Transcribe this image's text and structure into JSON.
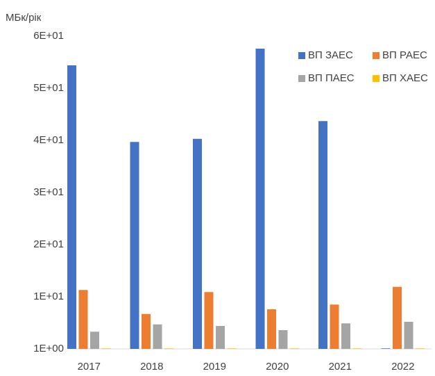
{
  "chart_data": {
    "type": "bar",
    "y_label": "МБк/рік",
    "categories": [
      "2017",
      "2018",
      "2019",
      "2020",
      "2021",
      "2022"
    ],
    "series": [
      {
        "name": "ВП ЗАЕС",
        "color": "#4472c4",
        "values": [
          55.4,
          40.7,
          41.3,
          58.6,
          44.7,
          1.1
        ]
      },
      {
        "name": "ВП РАЕС",
        "color": "#ed7d31",
        "values": [
          12.3,
          7.7,
          11.9,
          8.6,
          9.5,
          12.9
        ]
      },
      {
        "name": "ВП ПАЕС",
        "color": "#a5a5a5",
        "values": [
          4.3,
          5.7,
          5.4,
          4.6,
          5.9,
          6.2
        ]
      },
      {
        "name": "ВП ХАЕС",
        "color": "#ffc000",
        "values": [
          1.1,
          1.1,
          1.1,
          1.1,
          1.1,
          1.1
        ]
      }
    ],
    "ylim": [
      1,
      61
    ],
    "yticks": [
      {
        "value": 1,
        "label": "1E+00"
      },
      {
        "value": 11,
        "label": "1E+01"
      },
      {
        "value": 21,
        "label": "2E+01"
      },
      {
        "value": 31,
        "label": "3E+01"
      },
      {
        "value": 41,
        "label": "4E+01"
      },
      {
        "value": 51,
        "label": "5E+01"
      },
      {
        "value": 61,
        "label": "6E+01"
      }
    ],
    "grid": false,
    "legend": "top-right"
  }
}
